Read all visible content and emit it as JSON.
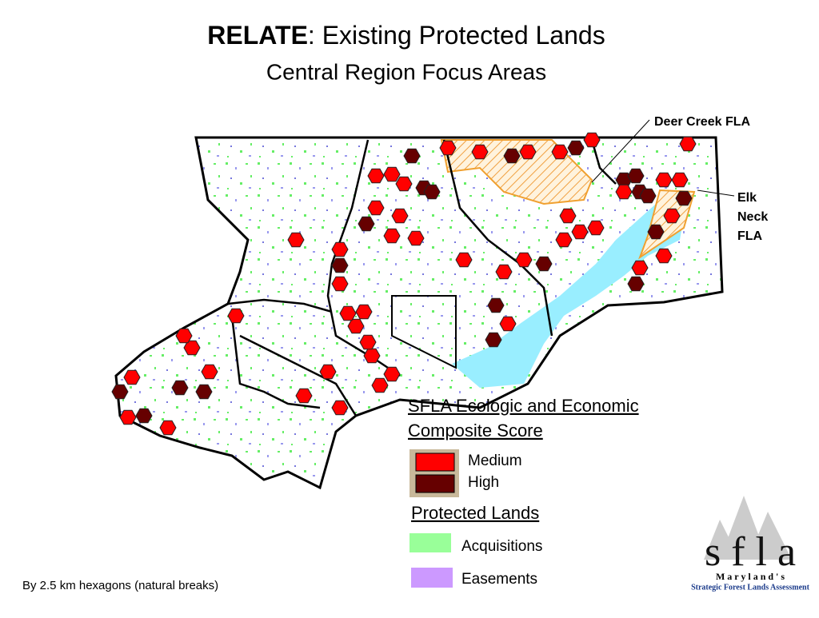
{
  "header": {
    "title_bold": "RELATE",
    "title_rest": ":  Existing Protected Lands",
    "subtitle": "Central Region Focus Areas"
  },
  "callouts": {
    "deer_creek": "Deer Creek FLA",
    "elk_neck": [
      "Elk",
      "Neck",
      "FLA"
    ]
  },
  "legend": {
    "score_title": [
      "SFLA Ecologic and Economic",
      "Composite Score"
    ],
    "score_items": [
      "Medium",
      "High"
    ],
    "protected_title": "Protected Lands",
    "protected_items": [
      "Acquisitions",
      "Easements"
    ]
  },
  "footnote": "By 2.5 km hexagons (natural breaks)",
  "logo": {
    "letters": "s f l a",
    "state": "M a r y l a n d ' s",
    "tagline": "Strategic Forest Lands Assessment"
  }
}
